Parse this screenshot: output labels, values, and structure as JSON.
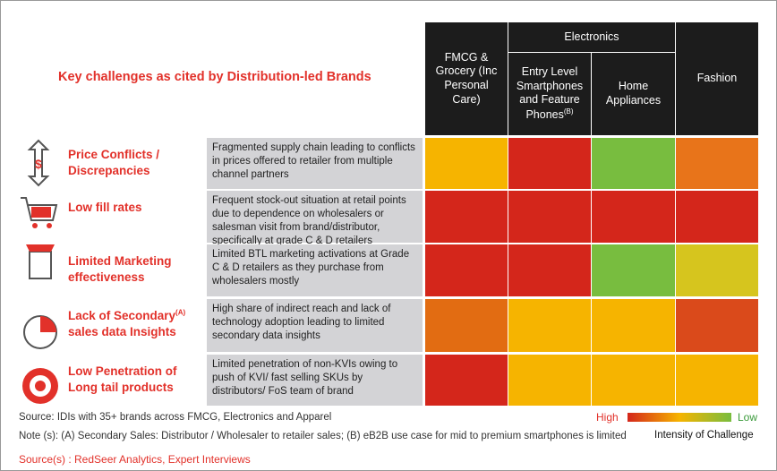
{
  "title": "Key challenges as cited by Distribution-led Brands",
  "columns": {
    "fmcg": "FMCG & Grocery (Inc Personal Care)",
    "electronics": "Electronics",
    "entry": "Entry Level Smartphones and Feature Phones",
    "entry_note": "(B)",
    "home": "Home Appliances",
    "fashion": "Fashion"
  },
  "rows": [
    {
      "challenge": [
        "Price Conflicts /",
        "Discrepancies"
      ],
      "description": "Fragmented supply chain leading to conflicts in prices offered to retailer from multiple channel partners",
      "colors": [
        "#f6b400",
        "#d4261b",
        "#78bd3f",
        "#e8741a"
      ]
    },
    {
      "challenge": [
        "Low fill rates"
      ],
      "description": "Frequent stock-out situation at retail points due to dependence on wholesalers or salesman visit from brand/distributor, specifically at grade C & D retailers",
      "colors": [
        "#d4261b",
        "#d4261b",
        "#d4261b",
        "#d4261b"
      ]
    },
    {
      "challenge": [
        "Limited Marketing",
        "effectiveness"
      ],
      "description": "Limited BTL marketing activations at Grade C & D retailers as they purchase from wholesalers mostly",
      "colors": [
        "#d4261b",
        "#d4261b",
        "#78bd3f",
        "#d6c51e"
      ]
    },
    {
      "challenge": [
        "Lack of Secondary",
        "sales data Insights"
      ],
      "note": "(A)",
      "description": "High share of indirect reach and lack of technology adoption leading to limited secondary data insights",
      "colors": [
        "#e26c12",
        "#f6b400",
        "#f6b400",
        "#da4a1b"
      ]
    },
    {
      "challenge": [
        "Low Penetration of",
        "Long tail products"
      ],
      "description": "Limited penetration of non-KVIs owing to push of KVI/ fast selling SKUs by distributors/ FoS team of brand",
      "colors": [
        "#d4261b",
        "#f6b400",
        "#f6b400",
        "#f6b400"
      ]
    }
  ],
  "legend": {
    "high": "High",
    "low": "Low",
    "caption": "Intensity of Challenge"
  },
  "footer": {
    "source": "Source: IDIs with 35+ brands across FMCG, Electronics and Apparel",
    "note": "Note (s):  (A) Secondary Sales: Distributor / Wholesaler to retailer sales; (B) eB2B use case for mid to premium smartphones is limited",
    "sources": "Source(s) : RedSeer Analytics, Expert Interviews"
  }
}
